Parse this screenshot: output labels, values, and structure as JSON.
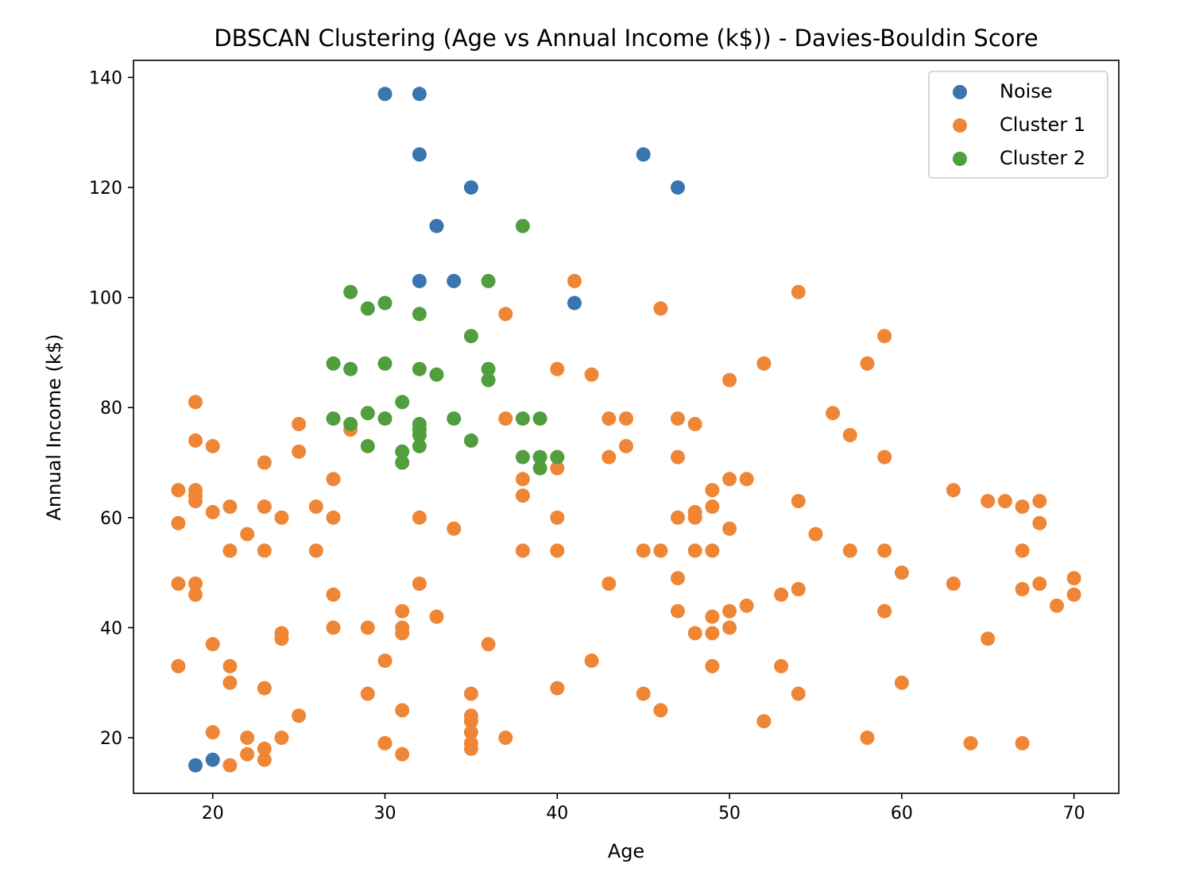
{
  "chart_data": {
    "type": "scatter",
    "title": "DBSCAN Clustering (Age vs Annual Income (k$)) - Davies-Bouldin Score",
    "xlabel": "Age",
    "ylabel": "Annual Income (k$)",
    "xlim": [
      15.4,
      72.6
    ],
    "ylim": [
      9.9,
      143.1
    ],
    "xticks": [
      20,
      30,
      40,
      50,
      60,
      70
    ],
    "yticks": [
      20,
      40,
      60,
      80,
      100,
      120,
      140
    ],
    "grid": false,
    "legend_position": "top-right",
    "series": [
      {
        "name": "Noise",
        "color": "#3b75af",
        "points": [
          [
            19,
            15
          ],
          [
            20,
            16
          ],
          [
            30,
            137
          ],
          [
            32,
            137
          ],
          [
            32,
            126
          ],
          [
            45,
            126
          ],
          [
            35,
            120
          ],
          [
            47,
            120
          ],
          [
            33,
            113
          ],
          [
            32,
            103
          ],
          [
            34,
            103
          ],
          [
            41,
            99
          ]
        ]
      },
      {
        "name": "Cluster 1",
        "color": "#ef8636",
        "points": [
          [
            18,
            65
          ],
          [
            18,
            59
          ],
          [
            18,
            48
          ],
          [
            18,
            33
          ],
          [
            19,
            81
          ],
          [
            19,
            74
          ],
          [
            19,
            65
          ],
          [
            19,
            64
          ],
          [
            19,
            63
          ],
          [
            19,
            48
          ],
          [
            19,
            46
          ],
          [
            20,
            73
          ],
          [
            20,
            61
          ],
          [
            20,
            37
          ],
          [
            20,
            21
          ],
          [
            21,
            62
          ],
          [
            21,
            54
          ],
          [
            21,
            33
          ],
          [
            21,
            30
          ],
          [
            21,
            15
          ],
          [
            22,
            57
          ],
          [
            22,
            20
          ],
          [
            22,
            17
          ],
          [
            23,
            70
          ],
          [
            23,
            62
          ],
          [
            23,
            54
          ],
          [
            23,
            29
          ],
          [
            23,
            18
          ],
          [
            23,
            16
          ],
          [
            24,
            60
          ],
          [
            24,
            39
          ],
          [
            24,
            38
          ],
          [
            24,
            20
          ],
          [
            25,
            77
          ],
          [
            25,
            72
          ],
          [
            25,
            24
          ],
          [
            26,
            62
          ],
          [
            26,
            54
          ],
          [
            27,
            67
          ],
          [
            27,
            60
          ],
          [
            27,
            46
          ],
          [
            27,
            40
          ],
          [
            28,
            76
          ],
          [
            29,
            40
          ],
          [
            29,
            28
          ],
          [
            30,
            34
          ],
          [
            30,
            19
          ],
          [
            31,
            43
          ],
          [
            31,
            40
          ],
          [
            31,
            39
          ],
          [
            31,
            25
          ],
          [
            31,
            17
          ],
          [
            32,
            60
          ],
          [
            32,
            48
          ],
          [
            33,
            42
          ],
          [
            34,
            58
          ],
          [
            35,
            28
          ],
          [
            35,
            24
          ],
          [
            35,
            23
          ],
          [
            35,
            21
          ],
          [
            35,
            19
          ],
          [
            35,
            18
          ],
          [
            36,
            37
          ],
          [
            37,
            97
          ],
          [
            37,
            78
          ],
          [
            37,
            20
          ],
          [
            38,
            67
          ],
          [
            38,
            64
          ],
          [
            38,
            54
          ],
          [
            40,
            87
          ],
          [
            40,
            69
          ],
          [
            40,
            60
          ],
          [
            40,
            54
          ],
          [
            40,
            29
          ],
          [
            41,
            103
          ],
          [
            42,
            86
          ],
          [
            42,
            34
          ],
          [
            43,
            78
          ],
          [
            43,
            71
          ],
          [
            43,
            48
          ],
          [
            44,
            78
          ],
          [
            44,
            73
          ],
          [
            45,
            54
          ],
          [
            45,
            28
          ],
          [
            46,
            98
          ],
          [
            46,
            54
          ],
          [
            46,
            25
          ],
          [
            47,
            78
          ],
          [
            47,
            71
          ],
          [
            47,
            60
          ],
          [
            47,
            49
          ],
          [
            47,
            43
          ],
          [
            48,
            77
          ],
          [
            48,
            61
          ],
          [
            48,
            60
          ],
          [
            48,
            54
          ],
          [
            48,
            39
          ],
          [
            49,
            65
          ],
          [
            49,
            62
          ],
          [
            49,
            54
          ],
          [
            49,
            42
          ],
          [
            49,
            39
          ],
          [
            49,
            33
          ],
          [
            50,
            85
          ],
          [
            50,
            67
          ],
          [
            50,
            58
          ],
          [
            50,
            43
          ],
          [
            50,
            40
          ],
          [
            51,
            67
          ],
          [
            51,
            44
          ],
          [
            52,
            88
          ],
          [
            52,
            23
          ],
          [
            53,
            46
          ],
          [
            53,
            33
          ],
          [
            54,
            101
          ],
          [
            54,
            63
          ],
          [
            54,
            47
          ],
          [
            54,
            28
          ],
          [
            55,
            57
          ],
          [
            56,
            79
          ],
          [
            57,
            75
          ],
          [
            57,
            54
          ],
          [
            58,
            88
          ],
          [
            58,
            20
          ],
          [
            59,
            93
          ],
          [
            59,
            71
          ],
          [
            59,
            54
          ],
          [
            59,
            43
          ],
          [
            60,
            50
          ],
          [
            60,
            30
          ],
          [
            63,
            65
          ],
          [
            63,
            48
          ],
          [
            64,
            19
          ],
          [
            65,
            63
          ],
          [
            65,
            38
          ],
          [
            66,
            63
          ],
          [
            67,
            62
          ],
          [
            67,
            54
          ],
          [
            67,
            47
          ],
          [
            67,
            19
          ],
          [
            68,
            63
          ],
          [
            68,
            59
          ],
          [
            68,
            48
          ],
          [
            69,
            44
          ],
          [
            70,
            49
          ],
          [
            70,
            46
          ]
        ]
      },
      {
        "name": "Cluster 2",
        "color": "#519e3e",
        "points": [
          [
            27,
            88
          ],
          [
            27,
            78
          ],
          [
            28,
            101
          ],
          [
            28,
            87
          ],
          [
            28,
            77
          ],
          [
            29,
            98
          ],
          [
            29,
            79
          ],
          [
            29,
            73
          ],
          [
            30,
            99
          ],
          [
            30,
            88
          ],
          [
            30,
            78
          ],
          [
            31,
            81
          ],
          [
            31,
            72
          ],
          [
            31,
            70
          ],
          [
            32,
            97
          ],
          [
            32,
            87
          ],
          [
            32,
            77
          ],
          [
            32,
            76
          ],
          [
            32,
            75
          ],
          [
            32,
            73
          ],
          [
            33,
            86
          ],
          [
            34,
            78
          ],
          [
            35,
            93
          ],
          [
            35,
            74
          ],
          [
            36,
            103
          ],
          [
            36,
            87
          ],
          [
            36,
            85
          ],
          [
            38,
            113
          ],
          [
            38,
            78
          ],
          [
            38,
            71
          ],
          [
            39,
            78
          ],
          [
            39,
            71
          ],
          [
            39,
            69
          ],
          [
            40,
            71
          ]
        ]
      }
    ]
  }
}
